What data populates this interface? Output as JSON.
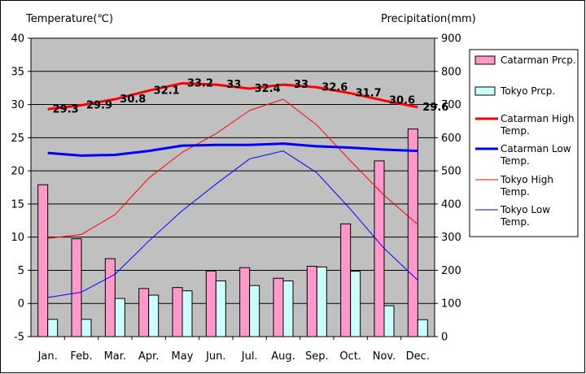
{
  "chart_data": {
    "type": "bar",
    "y_left_title": "Temperature(℃)",
    "y_right_title": "Precipitation(mm)",
    "categories": [
      "Jan.",
      "Feb.",
      "Mar.",
      "Apr.",
      "May",
      "Jun.",
      "Jul.",
      "Aug.",
      "Sep.",
      "Oct.",
      "Nov.",
      "Dec."
    ],
    "ylim_left": [
      -5,
      40
    ],
    "ylim_right": [
      0,
      900
    ],
    "left_ticks": [
      "-5",
      "0",
      "5",
      "10",
      "15",
      "20",
      "25",
      "30",
      "35",
      "40"
    ],
    "right_ticks": [
      "0",
      "100",
      "200",
      "300",
      "400",
      "500",
      "600",
      "700",
      "800",
      "900"
    ],
    "grid": true,
    "legend_position": "right",
    "bar_series": [
      {
        "name": "Catarman Prcp.",
        "color": "#ff99cc",
        "values": [
          458,
          295,
          235,
          145,
          148,
          198,
          208,
          176,
          212,
          340,
          530,
          626
        ]
      },
      {
        "name": "Tokyo Prcp.",
        "color": "#ccffff",
        "values": [
          52,
          52,
          115,
          125,
          138,
          168,
          154,
          168,
          210,
          197,
          93,
          51
        ]
      }
    ],
    "line_series": [
      {
        "name": "Catarman High Temp.",
        "color": "#ff0000",
        "width": 3,
        "values": [
          29.3,
          29.9,
          30.8,
          32.1,
          33.2,
          33.0,
          32.4,
          33.0,
          32.6,
          31.7,
          30.6,
          29.6
        ],
        "labels": [
          "29.3",
          "29.9",
          "30.8",
          "32.1",
          "33.2",
          "33",
          "32.4",
          "33",
          "32.6",
          "31.7",
          "30.6",
          "29.6"
        ]
      },
      {
        "name": "Catarman Low Temp.",
        "color": "#0000ff",
        "width": 3,
        "values": [
          22.7,
          22.3,
          22.4,
          23.0,
          23.8,
          23.9,
          23.9,
          24.1,
          23.7,
          23.5,
          23.2,
          23.0
        ]
      },
      {
        "name": "Tokyo High Temp.",
        "color": "#ff0000",
        "width": 1,
        "values": [
          9.8,
          10.4,
          13.4,
          18.9,
          22.8,
          25.6,
          29.1,
          30.8,
          26.9,
          21.5,
          16.3,
          11.9
        ]
      },
      {
        "name": "Tokyo Low Temp.",
        "color": "#0000ff",
        "width": 1,
        "values": [
          0.9,
          1.7,
          4.4,
          9.4,
          14.0,
          18.0,
          21.8,
          23.0,
          19.7,
          14.2,
          8.3,
          3.5
        ]
      }
    ]
  }
}
